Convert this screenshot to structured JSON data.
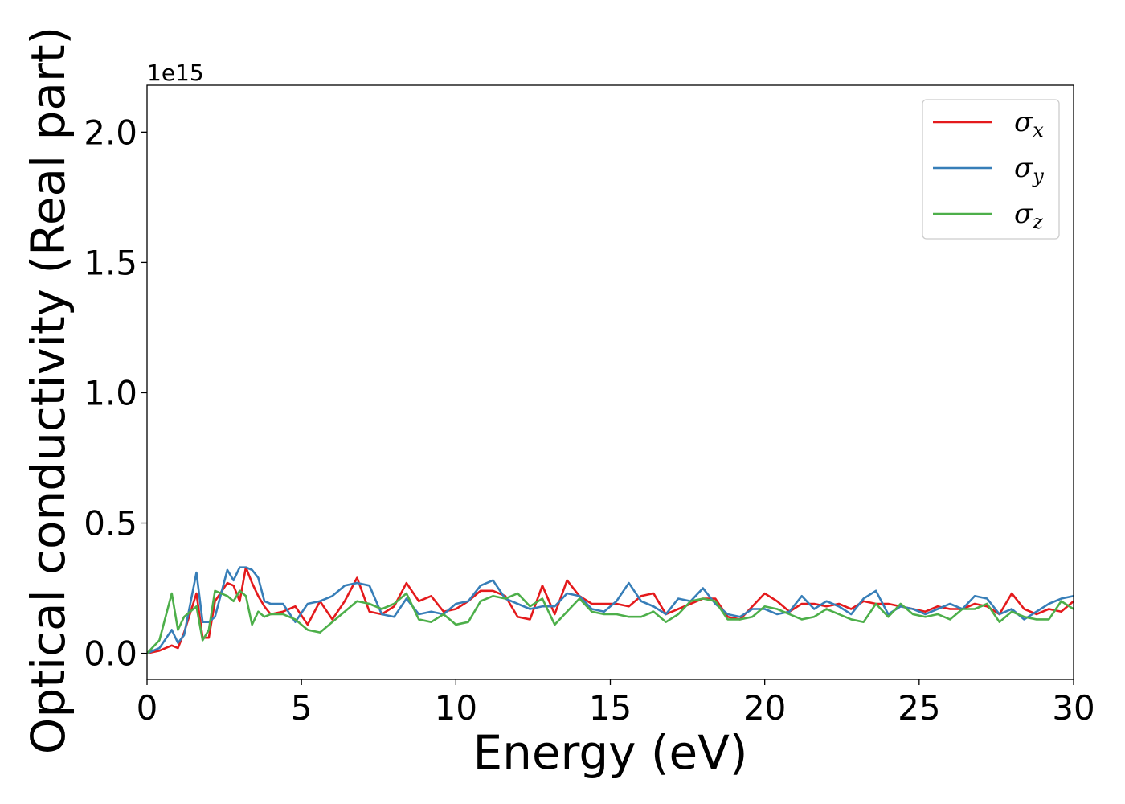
{
  "chart_data": {
    "type": "line",
    "xlabel": "Energy (eV)",
    "ylabel": "Optical conductivity (Real part)",
    "y_offset_label": "1e15",
    "xlim": [
      0,
      30
    ],
    "ylim": [
      -0.1,
      2.18
    ],
    "y_scale_factor": 1000000000000000.0,
    "x_ticks": [
      0,
      5,
      10,
      15,
      20,
      25,
      30
    ],
    "x_tick_labels": [
      "0",
      "5",
      "10",
      "15",
      "20",
      "25",
      "30"
    ],
    "y_ticks": [
      0.0,
      0.5,
      1.0,
      1.5,
      2.0
    ],
    "y_tick_labels": [
      "0.0",
      "0.5",
      "1.0",
      "1.5",
      "2.0"
    ],
    "grid": false,
    "legend_position": "top-right",
    "series": [
      {
        "name": "σ",
        "subscript": "x",
        "color": "#e41a1c",
        "x": [
          0,
          0.4,
          0.8,
          1.0,
          1.2,
          1.6,
          1.8,
          2.0,
          2.2,
          2.6,
          2.8,
          3.0,
          3.2,
          3.4,
          3.6,
          3.8,
          4.0,
          4.4,
          4.8,
          5.2,
          5.6,
          6.0,
          6.4,
          6.8,
          7.2,
          7.6,
          8.0,
          8.4,
          8.8,
          9.2,
          9.6,
          10.0,
          10.4,
          10.8,
          11.2,
          11.6,
          12.0,
          12.4,
          12.8,
          13.2,
          13.6,
          14.0,
          14.4,
          14.8,
          15.2,
          15.6,
          16.0,
          16.4,
          16.8,
          17.2,
          17.6,
          18.0,
          18.4,
          18.8,
          19.2,
          19.6,
          20.0,
          20.4,
          20.8,
          21.2,
          21.6,
          22.0,
          22.4,
          22.8,
          23.2,
          23.6,
          24.0,
          24.4,
          24.8,
          25.2,
          25.6,
          26.0,
          26.4,
          26.8,
          27.2,
          27.6,
          28.0,
          28.4,
          28.8,
          29.2,
          29.6,
          30.0
        ],
        "values": [
          0.0,
          0.01,
          0.03,
          0.02,
          0.08,
          0.23,
          0.06,
          0.06,
          0.2,
          0.27,
          0.26,
          0.2,
          0.33,
          0.27,
          0.22,
          0.18,
          0.15,
          0.16,
          0.18,
          0.11,
          0.2,
          0.13,
          0.2,
          0.29,
          0.16,
          0.15,
          0.18,
          0.27,
          0.2,
          0.22,
          0.16,
          0.17,
          0.2,
          0.24,
          0.24,
          0.22,
          0.14,
          0.13,
          0.26,
          0.15,
          0.28,
          0.22,
          0.19,
          0.19,
          0.19,
          0.18,
          0.22,
          0.23,
          0.15,
          0.17,
          0.19,
          0.21,
          0.21,
          0.14,
          0.13,
          0.18,
          0.23,
          0.2,
          0.16,
          0.19,
          0.19,
          0.18,
          0.19,
          0.17,
          0.2,
          0.19,
          0.19,
          0.18,
          0.17,
          0.16,
          0.18,
          0.17,
          0.17,
          0.19,
          0.18,
          0.15,
          0.23,
          0.17,
          0.15,
          0.17,
          0.16,
          0.2
        ]
      },
      {
        "name": "σ",
        "subscript": "y",
        "color": "#377eb8",
        "x": [
          0,
          0.4,
          0.8,
          1.0,
          1.2,
          1.6,
          1.8,
          2.0,
          2.2,
          2.6,
          2.8,
          3.0,
          3.2,
          3.4,
          3.6,
          3.8,
          4.0,
          4.4,
          4.8,
          5.2,
          5.6,
          6.0,
          6.4,
          6.8,
          7.2,
          7.6,
          8.0,
          8.4,
          8.8,
          9.2,
          9.6,
          10.0,
          10.4,
          10.8,
          11.2,
          11.6,
          12.0,
          12.4,
          12.8,
          13.2,
          13.6,
          14.0,
          14.4,
          14.8,
          15.2,
          15.6,
          16.0,
          16.4,
          16.8,
          17.2,
          17.6,
          18.0,
          18.4,
          18.8,
          19.2,
          19.6,
          20.0,
          20.4,
          20.8,
          21.2,
          21.6,
          22.0,
          22.4,
          22.8,
          23.2,
          23.6,
          24.0,
          24.4,
          24.8,
          25.2,
          25.6,
          26.0,
          26.4,
          26.8,
          27.2,
          27.6,
          28.0,
          28.4,
          28.8,
          29.2,
          29.6,
          30.0
        ],
        "values": [
          0.0,
          0.02,
          0.09,
          0.04,
          0.07,
          0.31,
          0.12,
          0.12,
          0.14,
          0.32,
          0.28,
          0.33,
          0.33,
          0.32,
          0.29,
          0.2,
          0.19,
          0.19,
          0.12,
          0.19,
          0.2,
          0.22,
          0.26,
          0.27,
          0.26,
          0.15,
          0.14,
          0.21,
          0.15,
          0.16,
          0.15,
          0.19,
          0.2,
          0.26,
          0.28,
          0.21,
          0.19,
          0.17,
          0.18,
          0.18,
          0.23,
          0.22,
          0.17,
          0.16,
          0.2,
          0.27,
          0.2,
          0.18,
          0.15,
          0.21,
          0.2,
          0.25,
          0.19,
          0.15,
          0.14,
          0.17,
          0.17,
          0.15,
          0.16,
          0.22,
          0.17,
          0.2,
          0.18,
          0.15,
          0.21,
          0.24,
          0.15,
          0.18,
          0.17,
          0.15,
          0.17,
          0.19,
          0.17,
          0.22,
          0.21,
          0.15,
          0.17,
          0.13,
          0.16,
          0.19,
          0.21,
          0.22
        ]
      },
      {
        "name": "σ",
        "subscript": "z",
        "color": "#4daf4a",
        "x": [
          0,
          0.4,
          0.8,
          1.0,
          1.2,
          1.6,
          1.8,
          2.0,
          2.2,
          2.6,
          2.8,
          3.0,
          3.2,
          3.4,
          3.6,
          3.8,
          4.0,
          4.4,
          4.8,
          5.2,
          5.6,
          6.0,
          6.4,
          6.8,
          7.2,
          7.6,
          8.0,
          8.4,
          8.8,
          9.2,
          9.6,
          10.0,
          10.4,
          10.8,
          11.2,
          11.6,
          12.0,
          12.4,
          12.8,
          13.2,
          13.6,
          14.0,
          14.4,
          14.8,
          15.2,
          15.6,
          16.0,
          16.4,
          16.8,
          17.2,
          17.6,
          18.0,
          18.4,
          18.8,
          19.2,
          19.6,
          20.0,
          20.4,
          20.8,
          21.2,
          21.6,
          22.0,
          22.4,
          22.8,
          23.2,
          23.6,
          24.0,
          24.4,
          24.8,
          25.2,
          25.6,
          26.0,
          26.4,
          26.8,
          27.2,
          27.6,
          28.0,
          28.4,
          28.8,
          29.2,
          29.6,
          30.0
        ],
        "values": [
          0.0,
          0.05,
          0.23,
          0.09,
          0.14,
          0.18,
          0.05,
          0.09,
          0.24,
          0.22,
          0.2,
          0.24,
          0.22,
          0.11,
          0.16,
          0.14,
          0.15,
          0.15,
          0.13,
          0.09,
          0.08,
          0.12,
          0.16,
          0.2,
          0.19,
          0.17,
          0.19,
          0.23,
          0.13,
          0.12,
          0.15,
          0.11,
          0.12,
          0.2,
          0.22,
          0.21,
          0.23,
          0.18,
          0.21,
          0.11,
          0.16,
          0.21,
          0.16,
          0.15,
          0.15,
          0.14,
          0.14,
          0.16,
          0.12,
          0.15,
          0.2,
          0.21,
          0.2,
          0.13,
          0.13,
          0.14,
          0.18,
          0.17,
          0.15,
          0.13,
          0.14,
          0.17,
          0.15,
          0.13,
          0.12,
          0.19,
          0.14,
          0.19,
          0.15,
          0.14,
          0.15,
          0.13,
          0.17,
          0.17,
          0.19,
          0.12,
          0.16,
          0.14,
          0.13,
          0.13,
          0.2,
          0.17
        ]
      }
    ]
  }
}
